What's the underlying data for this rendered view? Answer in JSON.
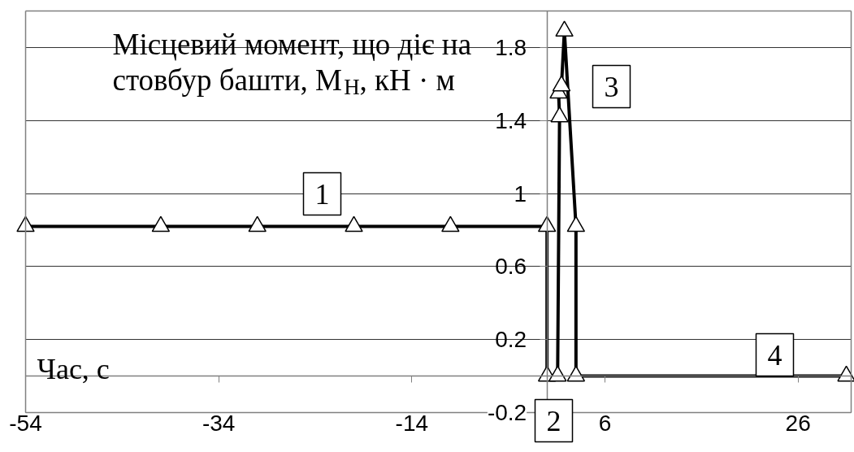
{
  "chart_data": {
    "type": "line",
    "xlabel": "Час, с",
    "ylabel": "Місцевий момент, що діє на стовбур башти, M$_{H}$, кН · м",
    "x": [
      -54,
      -40,
      -30,
      -20,
      -10,
      0,
      0,
      1.1,
      1.3,
      1.2,
      1.5,
      1.8,
      3,
      3,
      31
    ],
    "series": [
      {
        "color": "#000000",
        "values": [
          0.82,
          0.82,
          0.82,
          0.82,
          0.82,
          0.82,
          0,
          0,
          1.42,
          1.55,
          1.59,
          1.89,
          0.82,
          0,
          0
        ]
      }
    ],
    "xlim": [
      -54,
      31.5
    ],
    "xticks": [
      -54,
      -34,
      -14,
      6,
      26
    ],
    "ylim": [
      -0.2,
      2.0
    ],
    "yticks": [
      -0.2,
      0.2,
      0.6,
      1,
      1.4,
      1.8
    ],
    "grid": "y",
    "marker": "triangle",
    "line_style": "solid",
    "annotations": [
      "1",
      "2",
      "3",
      "4"
    ]
  }
}
